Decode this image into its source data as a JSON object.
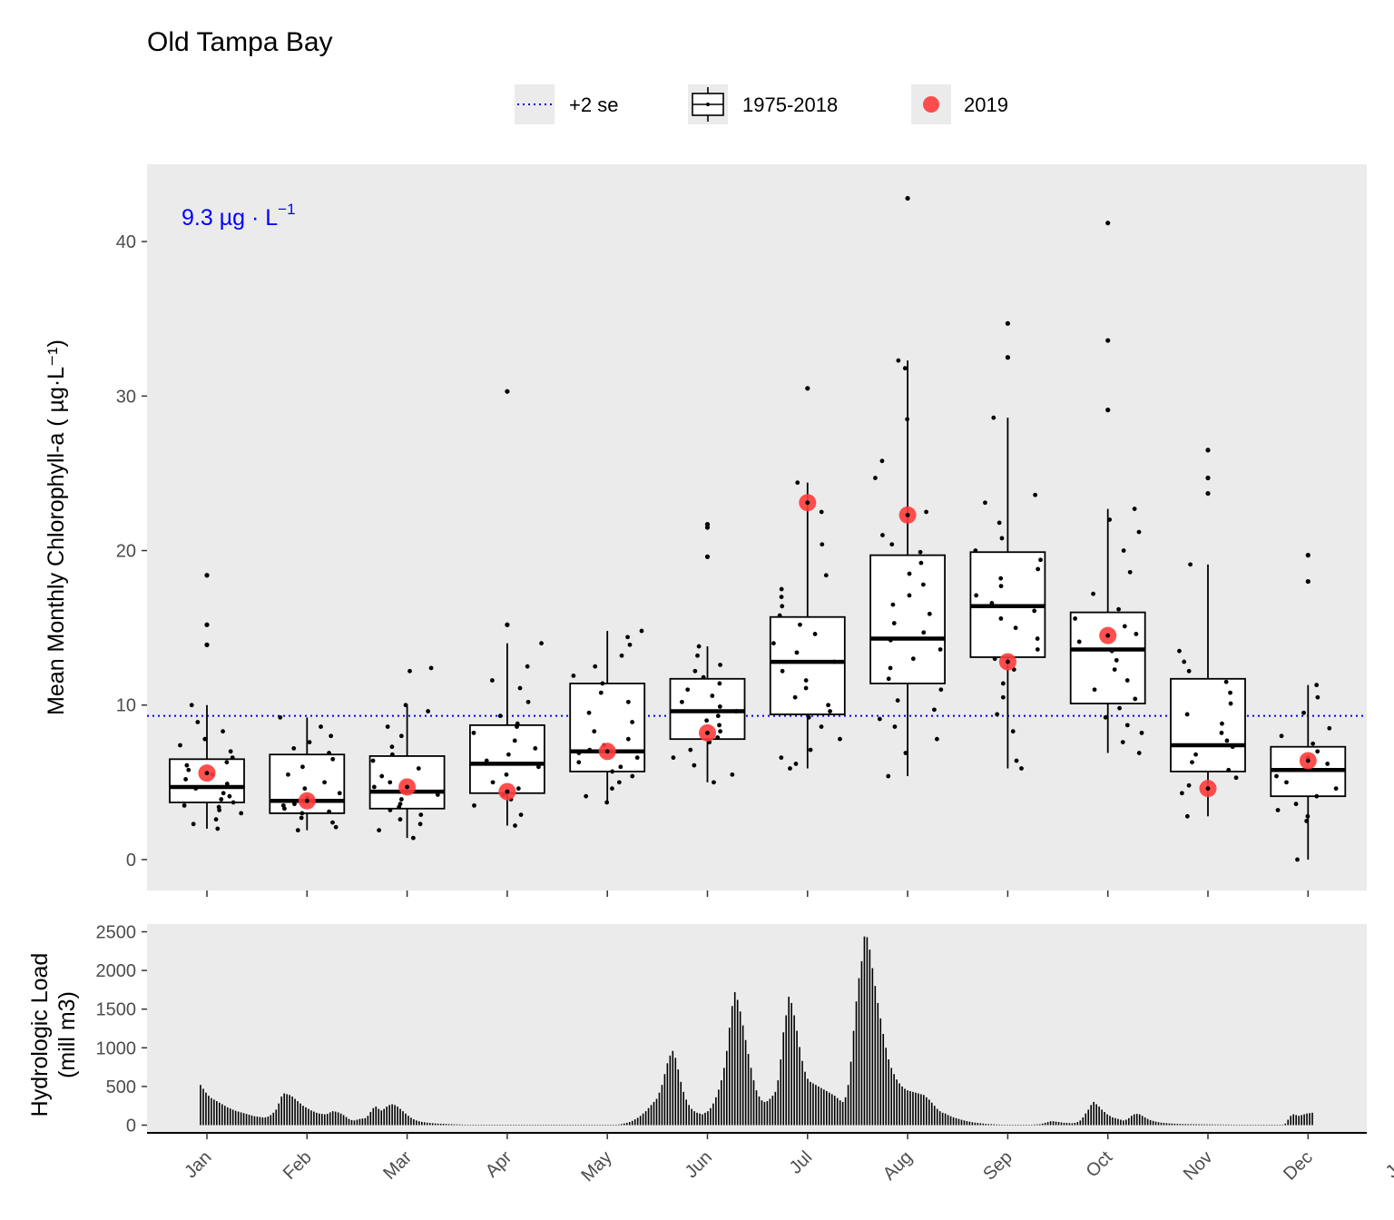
{
  "chart_data": [
    {
      "type": "box",
      "title": "Old Tampa Bay",
      "xlabel": "",
      "ylabel": "Mean Monthly Chlorophyll-a ( µg·L⁻¹)",
      "ylim": [
        -2,
        45
      ],
      "yticks": [
        0,
        10,
        20,
        30,
        40
      ],
      "categories": [
        "Jan",
        "Feb",
        "Mar",
        "Apr",
        "May",
        "Jun",
        "Jul",
        "Aug",
        "Sep",
        "Oct",
        "Nov",
        "Dec",
        "Jan"
      ],
      "grid": false,
      "legend_position": "top",
      "legend": [
        {
          "label": "+2 se",
          "kind": "dotted-line",
          "color": "#0000cc"
        },
        {
          "label": "1975-2018",
          "kind": "boxplot"
        },
        {
          "label": "2019",
          "kind": "point",
          "color": "#ff3b3b"
        }
      ],
      "threshold": {
        "value": 9.3,
        "label_main": "9.3 µg · L",
        "label_sup": "−1",
        "color": "#0000ff",
        "style": "dotted"
      },
      "boxplots": [
        {
          "month": "Jan",
          "whisker_low": 2.0,
          "q1": 3.7,
          "median": 4.7,
          "q3": 6.5,
          "whisker_high": 10.0
        },
        {
          "month": "Feb",
          "whisker_low": 1.9,
          "q1": 3.0,
          "median": 3.8,
          "q3": 6.8,
          "whisker_high": 9.2
        },
        {
          "month": "Mar",
          "whisker_low": 1.4,
          "q1": 3.3,
          "median": 4.4,
          "q3": 6.7,
          "whisker_high": 10.0
        },
        {
          "month": "Apr",
          "whisker_low": 2.2,
          "q1": 4.3,
          "median": 6.2,
          "q3": 8.7,
          "whisker_high": 14.0
        },
        {
          "month": "May",
          "whisker_low": 3.7,
          "q1": 5.7,
          "median": 7.0,
          "q3": 11.4,
          "whisker_high": 14.8
        },
        {
          "month": "Jun",
          "whisker_low": 5.0,
          "q1": 7.8,
          "median": 9.6,
          "q3": 11.7,
          "whisker_high": 13.8
        },
        {
          "month": "Jul",
          "whisker_low": 5.9,
          "q1": 9.4,
          "median": 12.8,
          "q3": 15.7,
          "whisker_high": 24.4
        },
        {
          "month": "Aug",
          "whisker_low": 5.4,
          "q1": 11.4,
          "median": 14.3,
          "q3": 19.7,
          "whisker_high": 32.3
        },
        {
          "month": "Sep",
          "whisker_low": 5.9,
          "q1": 13.1,
          "median": 16.4,
          "q3": 19.9,
          "whisker_high": 28.6
        },
        {
          "month": "Oct",
          "whisker_low": 6.9,
          "q1": 10.1,
          "median": 13.6,
          "q3": 16.0,
          "whisker_high": 22.7
        },
        {
          "month": "Nov",
          "whisker_low": 2.8,
          "q1": 5.7,
          "median": 7.4,
          "q3": 11.7,
          "whisker_high": 19.1
        },
        {
          "month": "Dec",
          "whisker_low": 0.0,
          "q1": 4.1,
          "median": 5.8,
          "q3": 7.3,
          "whisker_high": 11.3
        }
      ],
      "outliers": [
        {
          "month": "Jan",
          "values": [
            13.9,
            15.2,
            18.4
          ]
        },
        {
          "month": "Apr",
          "values": [
            15.2,
            30.3
          ]
        },
        {
          "month": "Jun",
          "values": [
            19.6,
            21.5,
            21.7
          ]
        },
        {
          "month": "Jul",
          "values": [
            30.5
          ]
        },
        {
          "month": "Aug",
          "values": [
            42.8
          ]
        },
        {
          "month": "Sep",
          "values": [
            32.5,
            34.7
          ]
        },
        {
          "month": "Oct",
          "values": [
            29.1,
            33.6,
            41.2
          ]
        },
        {
          "month": "Nov",
          "values": [
            23.7,
            24.7,
            26.5
          ]
        },
        {
          "month": "Dec",
          "values": [
            18.0,
            19.7
          ]
        }
      ],
      "observations": [
        {
          "month": "Jan",
          "values": [
            2.0,
            2.3,
            2.6,
            3.0,
            3.2,
            3.4,
            3.5,
            3.7,
            3.9,
            4.1,
            4.3,
            4.6,
            4.9,
            5.2,
            5.5,
            5.8,
            6.1,
            6.3,
            6.6,
            7.0,
            7.4,
            7.8,
            8.3,
            8.9,
            10.0
          ]
        },
        {
          "month": "Feb",
          "values": [
            1.9,
            2.1,
            2.4,
            2.7,
            3.0,
            3.1,
            3.3,
            3.5,
            3.6,
            3.8,
            4.0,
            4.3,
            4.6,
            5.0,
            5.5,
            6.0,
            6.5,
            6.9,
            7.2,
            7.6,
            8.0,
            8.6,
            9.2
          ]
        },
        {
          "month": "Mar",
          "values": [
            1.4,
            1.9,
            2.3,
            2.6,
            2.9,
            3.2,
            3.4,
            3.6,
            3.9,
            4.2,
            4.4,
            4.7,
            5.0,
            5.4,
            5.9,
            6.4,
            6.8,
            7.3,
            8.0,
            8.6,
            9.6,
            10.0,
            12.2,
            12.4
          ]
        },
        {
          "month": "Apr",
          "values": [
            2.2,
            2.9,
            3.5,
            3.9,
            4.2,
            4.4,
            4.6,
            5.0,
            5.5,
            6.0,
            6.4,
            6.8,
            7.2,
            7.7,
            8.2,
            8.6,
            8.8,
            9.3,
            10.2,
            11.1,
            11.6,
            12.5,
            14.0
          ]
        },
        {
          "month": "May",
          "values": [
            3.7,
            4.1,
            4.6,
            5.0,
            5.4,
            5.7,
            6.0,
            6.3,
            6.6,
            6.9,
            7.1,
            7.4,
            7.8,
            8.3,
            8.9,
            9.5,
            10.2,
            10.8,
            11.4,
            11.9,
            12.5,
            13.2,
            13.9,
            14.4,
            14.8
          ]
        },
        {
          "month": "Jun",
          "values": [
            5.0,
            5.5,
            6.1,
            6.6,
            7.1,
            7.6,
            7.9,
            8.3,
            8.7,
            9.0,
            9.3,
            9.6,
            9.9,
            10.2,
            10.6,
            11.0,
            11.4,
            11.8,
            12.2,
            12.6,
            13.2,
            13.8
          ]
        },
        {
          "month": "Jul",
          "values": [
            5.9,
            6.2,
            6.6,
            7.1,
            7.8,
            8.6,
            9.2,
            9.6,
            10.0,
            10.5,
            11.1,
            11.6,
            12.2,
            12.8,
            13.4,
            14.0,
            14.6,
            15.2,
            15.8,
            16.4,
            17.0,
            17.5,
            18.4,
            20.4,
            22.5,
            24.4
          ]
        },
        {
          "month": "Aug",
          "values": [
            5.4,
            6.9,
            7.8,
            8.6,
            9.1,
            9.7,
            10.3,
            11.0,
            11.7,
            12.4,
            13.0,
            13.6,
            14.2,
            14.7,
            15.3,
            15.9,
            16.5,
            17.1,
            17.8,
            18.5,
            19.2,
            19.9,
            20.4,
            21.0,
            22.5,
            24.7,
            25.8,
            28.5,
            31.8,
            32.3
          ]
        },
        {
          "month": "Sep",
          "values": [
            5.9,
            6.4,
            8.3,
            9.4,
            10.5,
            11.4,
            12.3,
            13.0,
            13.6,
            14.3,
            15.0,
            15.6,
            16.1,
            16.6,
            17.1,
            17.7,
            18.2,
            18.8,
            19.4,
            20.0,
            20.8,
            21.8,
            23.1,
            23.6,
            28.6
          ]
        },
        {
          "month": "Oct",
          "values": [
            6.9,
            7.6,
            8.2,
            8.7,
            9.2,
            9.8,
            10.4,
            11.0,
            11.6,
            12.3,
            12.9,
            13.5,
            14.1,
            14.6,
            15.1,
            15.6,
            16.2,
            17.2,
            18.6,
            20.0,
            21.2,
            22.0,
            22.7
          ]
        },
        {
          "month": "Nov",
          "values": [
            2.8,
            4.3,
            4.8,
            5.3,
            5.8,
            6.3,
            6.8,
            7.3,
            7.7,
            8.2,
            8.8,
            9.4,
            10.1,
            10.8,
            11.5,
            12.2,
            12.8,
            13.5,
            19.1
          ]
        },
        {
          "month": "Dec",
          "values": [
            0.0,
            2.5,
            2.8,
            3.2,
            3.6,
            4.1,
            4.6,
            5.0,
            5.4,
            5.8,
            6.2,
            6.6,
            7.0,
            7.5,
            8.0,
            8.5,
            9.5,
            10.5,
            11.3
          ]
        }
      ],
      "points_2019": [
        5.6,
        3.8,
        4.7,
        4.4,
        7.0,
        8.2,
        23.1,
        22.3,
        12.8,
        14.5,
        4.6,
        6.4
      ]
    },
    {
      "type": "bar",
      "xlabel": "",
      "ylabel": "Hydrologic Load\n(mill m3)",
      "ylim": [
        -100,
        2600
      ],
      "yticks": [
        0,
        500,
        1000,
        1500,
        2000,
        2500
      ],
      "x_tick_labels": [
        "Jan",
        "Feb",
        "Mar",
        "Apr",
        "May",
        "Jun",
        "Jul",
        "Aug",
        "Sep",
        "Oct",
        "Nov",
        "Dec",
        "Jan"
      ],
      "x_tick_angle": -45,
      "grid": false,
      "series": [
        {
          "name": "",
          "color": "#000000",
          "values": [
            520,
            470,
            420,
            380,
            350,
            330,
            310,
            290,
            270,
            250,
            230,
            215,
            200,
            185,
            175,
            165,
            155,
            145,
            135,
            125,
            115,
            110,
            105,
            100,
            100,
            110,
            130,
            160,
            200,
            280,
            370,
            410,
            400,
            390,
            370,
            340,
            310,
            280,
            250,
            230,
            210,
            190,
            175,
            160,
            150,
            145,
            140,
            145,
            165,
            180,
            175,
            165,
            150,
            130,
            105,
            80,
            65,
            60,
            70,
            80,
            85,
            90,
            120,
            170,
            220,
            240,
            210,
            190,
            210,
            240,
            260,
            270,
            260,
            240,
            210,
            180,
            150,
            120,
            95,
            75,
            60,
            50,
            42,
            37,
            32,
            28,
            25,
            22,
            20,
            18,
            17,
            15,
            13,
            12,
            10,
            9,
            8,
            7,
            6,
            6,
            5,
            5,
            4,
            4,
            3,
            3,
            3,
            2,
            2,
            2,
            2,
            1,
            1,
            1,
            1,
            1,
            1,
            1,
            1,
            1,
            1,
            1,
            1,
            1,
            1,
            1,
            1,
            1,
            1,
            1,
            1,
            1,
            1,
            1,
            1,
            1,
            1,
            1,
            1,
            1,
            1,
            1,
            1,
            1,
            1,
            1,
            1,
            1,
            1,
            1,
            1,
            2,
            2,
            3,
            5,
            8,
            14,
            22,
            30,
            40,
            55,
            75,
            95,
            120,
            150,
            180,
            220,
            260,
            300,
            340,
            420,
            520,
            660,
            800,
            900,
            960,
            870,
            720,
            560,
            430,
            330,
            260,
            210,
            180,
            160,
            150,
            140,
            160,
            180,
            220,
            280,
            360,
            460,
            580,
            740,
            960,
            1260,
            1540,
            1720,
            1620,
            1470,
            1290,
            1100,
            920,
            740,
            580,
            450,
            370,
            320,
            300,
            310,
            340,
            380,
            430,
            580,
            850,
            1200,
            1420,
            1660,
            1580,
            1420,
            1220,
            1010,
            830,
            690,
            600,
            560,
            540,
            520,
            500,
            480,
            460,
            440,
            420,
            400,
            380,
            350,
            320,
            300,
            360,
            520,
            820,
            1220,
            1600,
            1900,
            2120,
            2440,
            2430,
            2270,
            2030,
            1800,
            1580,
            1380,
            1180,
            1000,
            850,
            740,
            660,
            590,
            540,
            500,
            470,
            450,
            440,
            430,
            420,
            410,
            400,
            390,
            360,
            330,
            290,
            250,
            210,
            180,
            160,
            150,
            130,
            115,
            100,
            90,
            80,
            70,
            60,
            52,
            45,
            38,
            32,
            28,
            24,
            20,
            16,
            14,
            12,
            10,
            8,
            7,
            6,
            5,
            5,
            4,
            3,
            3,
            3,
            3,
            3,
            4,
            5,
            6,
            8,
            10,
            12,
            20,
            30,
            40,
            50,
            50,
            45,
            40,
            35,
            30,
            28,
            26,
            24,
            30,
            40,
            60,
            100,
            150,
            200,
            260,
            300,
            270,
            240,
            200,
            170,
            140,
            120,
            100,
            90,
            80,
            70,
            60,
            70,
            90,
            120,
            140,
            145,
            140,
            120,
            100,
            80,
            65,
            55,
            45,
            38,
            32,
            28,
            25,
            22,
            20,
            18,
            16,
            15,
            14,
            13,
            12,
            12,
            11,
            11,
            10,
            10,
            10,
            9,
            9,
            9,
            8,
            8,
            8,
            7,
            7,
            7,
            6,
            6,
            6,
            5,
            5,
            5,
            4,
            4,
            4,
            4,
            3,
            3,
            3,
            3,
            2,
            2,
            2,
            2,
            2,
            2,
            20,
            70,
            120,
            140,
            130,
            120,
            130,
            140,
            150,
            155,
            160
          ]
        }
      ]
    }
  ]
}
